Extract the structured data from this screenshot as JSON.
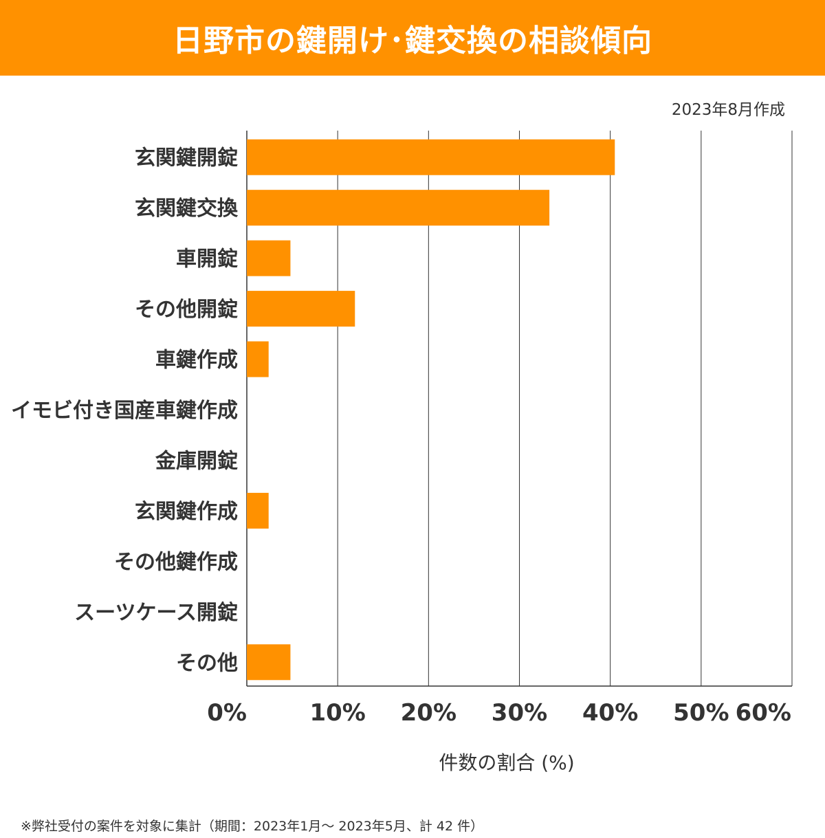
{
  "header": {
    "title": "日野市の鍵開け･鍵交換の相談傾向"
  },
  "date_label": "2023年8月作成",
  "footnote": "※弊社受付の案件を対象に集計（期間：2023年1月～ 2023年5月、計 42 件）",
  "colors": {
    "accent": "#FF9100",
    "grid": "#333333"
  },
  "chart_data": {
    "type": "bar",
    "orientation": "horizontal",
    "title": "日野市の鍵開け･鍵交換の相談傾向",
    "categories": [
      "玄関鍵開錠",
      "玄関鍵交換",
      "車開錠",
      "その他開錠",
      "車鍵作成",
      "イモビ付き国産車鍵作成",
      "金庫開錠",
      "玄関鍵作成",
      "その他鍵作成",
      "スーツケース開錠",
      "その他"
    ],
    "values": [
      40.5,
      33.3,
      4.8,
      11.9,
      2.4,
      0,
      0,
      2.4,
      0,
      0,
      4.8
    ],
    "xlabel": "件数の割合 (%)",
    "ylabel": "",
    "xlim": [
      0,
      60
    ],
    "xticks": [
      "0%",
      "10%",
      "20%",
      "30%",
      "40%",
      "50%",
      "60%"
    ],
    "grid": true
  }
}
